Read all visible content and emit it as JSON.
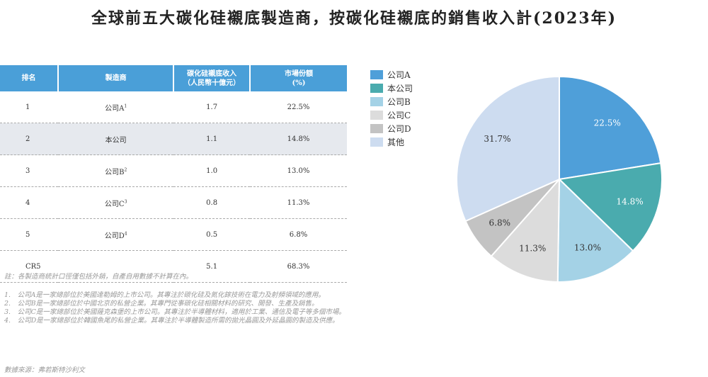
{
  "title": "全球前五大碳化硅襯底製造商，按碳化硅襯底的銷售收入計(2023年)",
  "table": {
    "headers": [
      "排名",
      "製造商",
      "碳化硅襯底收入\n（人民幣十億元）",
      "市場份額\n(%)"
    ],
    "rows": [
      {
        "rank": "1",
        "maker": "公司A",
        "sup": "1",
        "revenue": "1.7",
        "share": "22.5%"
      },
      {
        "rank": "2",
        "maker": "本公司",
        "sup": "",
        "revenue": "1.1",
        "share": "14.8%"
      },
      {
        "rank": "3",
        "maker": "公司B",
        "sup": "2",
        "revenue": "1.0",
        "share": "13.0%"
      },
      {
        "rank": "4",
        "maker": "公司C",
        "sup": "3",
        "revenue": "0.8",
        "share": "11.3%"
      },
      {
        "rank": "5",
        "maker": "公司D",
        "sup": "4",
        "revenue": "0.5",
        "share": "6.8%"
      },
      {
        "rank": "CR5",
        "maker": "",
        "sup": "",
        "revenue": "5.1",
        "share": "68.3%"
      }
    ]
  },
  "notes": {
    "main": "註：各製造商統計口徑僅包括外銷，自產自用數據不計算在內。",
    "items": [
      "1.　公司A是一家總部位於美國達勒姆的上市公司。其專注於碳化硅及氮化鎵技術在電力及射頻領域的應用。",
      "2.　公司B是一家總部位於中國北京的私營企業。其專門從事碳化硅相關材料的研究、開發、生產及銷售。",
      "3.　公司C是一家總部位於美國薩克森堡的上市公司。其專注於半導體材料，適用於工業、通信及電子等多個市場。",
      "4.　公司D是一家總部位於韓國魚尾的私營企業。其專注於半導體製造所需的拋光晶圓及外延晶圓的製造及供應。"
    ],
    "source": "數據來源：弗若斯特沙利文"
  },
  "chart_data": {
    "type": "pie",
    "title": "全球前五大碳化硅襯底製造商，按碳化硅襯底的銷售收入計(2023年)",
    "legend_position": "top-left",
    "slices": [
      {
        "label": "公司A",
        "value": 22.5,
        "text": "22.5%",
        "color": "#4f9fd9"
      },
      {
        "label": "本公司",
        "value": 14.8,
        "text": "14.8%",
        "color": "#4aabae"
      },
      {
        "label": "公司B",
        "value": 13.0,
        "text": "13.0%",
        "color": "#a4d2e6"
      },
      {
        "label": "公司C",
        "value": 11.3,
        "text": "11.3%",
        "color": "#dcdcdc"
      },
      {
        "label": "公司D",
        "value": 6.8,
        "text": "6.8%",
        "color": "#c3c3c3"
      },
      {
        "label": "其他",
        "value": 31.7,
        "text": "31.7%",
        "color": "#cddcf0"
      }
    ]
  }
}
